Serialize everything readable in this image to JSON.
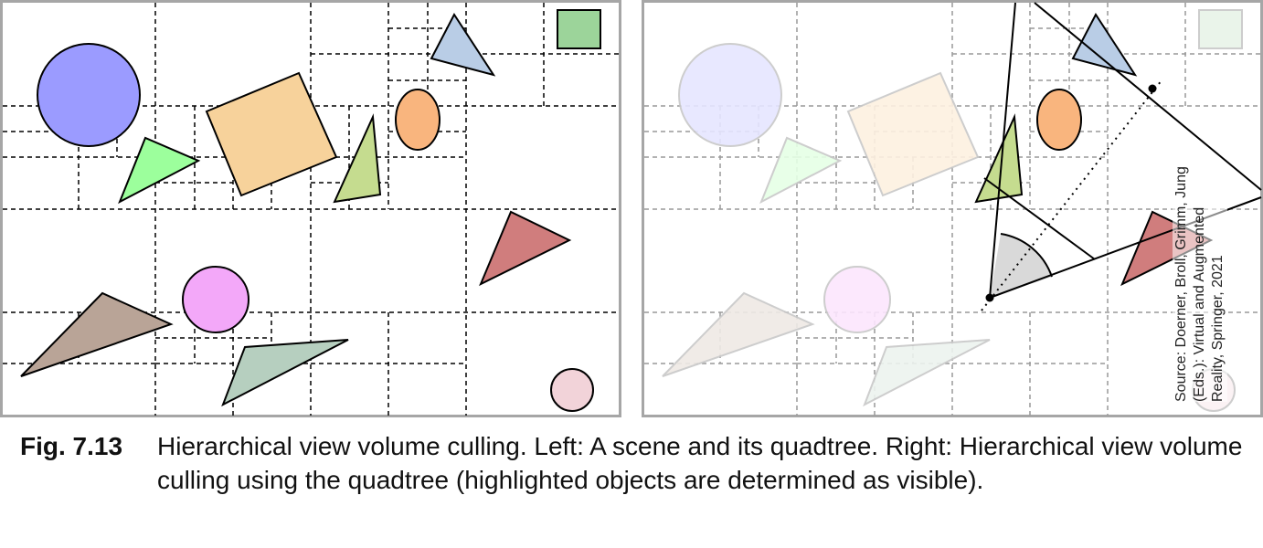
{
  "figure": {
    "label": "Fig. 7.13",
    "caption": "Hierarchical view volume culling. Left: A scene and its quadtree. Right: Hierarchical view volume culling using the quadtree (highlighted objects are determined as visible).",
    "source_note": "Source: Doerner, Broll, Grimm, Jung (Eds.): Virtual and Augmented Reality, Springer, 2021"
  },
  "panels": [
    {
      "id": "left",
      "content": "scene-with-quadtree"
    },
    {
      "id": "right",
      "content": "view-volume-culling"
    }
  ],
  "objects": [
    {
      "name": "blue-circle",
      "shape": "circle",
      "fill": "#9b9bff",
      "visible_in_view": false
    },
    {
      "name": "orange-square",
      "shape": "square",
      "fill": "#f7d29b",
      "visible_in_view": false
    },
    {
      "name": "green-triangle",
      "shape": "triangle",
      "fill": "#9cff9c",
      "visible_in_view": false
    },
    {
      "name": "olive-triangle",
      "shape": "triangle",
      "fill": "#c5dc8f",
      "visible_in_view": true
    },
    {
      "name": "orange-ellipse",
      "shape": "ellipse",
      "fill": "#f9b57e",
      "visible_in_view": true
    },
    {
      "name": "blue-triangle",
      "shape": "triangle",
      "fill": "#b9cde6",
      "visible_in_view": true
    },
    {
      "name": "green-square",
      "shape": "square",
      "fill": "#9cd49a",
      "visible_in_view": false
    },
    {
      "name": "red-triangle",
      "shape": "triangle",
      "fill": "#d07d7d",
      "visible_in_view": true
    },
    {
      "name": "pink-circle",
      "shape": "circle",
      "fill": "#f3a8f9",
      "visible_in_view": false
    },
    {
      "name": "brown-triangle",
      "shape": "triangle",
      "fill": "#b9a497",
      "visible_in_view": false
    },
    {
      "name": "teal-quad",
      "shape": "quadrilateral",
      "fill": "#b6cfbf",
      "visible_in_view": false
    },
    {
      "name": "small-pink-circle",
      "shape": "circle",
      "fill": "#f2d3d9",
      "visible_in_view": false
    }
  ],
  "colors": {
    "frame": "#a6a6a6",
    "quadtree_left": "#000000",
    "quadtree_right": "#999999",
    "frustum": "#000000",
    "view_angle_fill": "#d9d9d9"
  }
}
